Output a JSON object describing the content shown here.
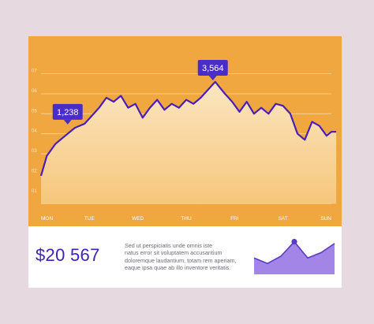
{
  "colors": {
    "background": "#e7d9e0",
    "panel": "#f1a73f",
    "line": "#4a1fb8",
    "callout": "#4a2dc8",
    "grid": "#fbd79a",
    "area_top": "#fbe6c2",
    "area_bottom": "#f6c77c",
    "mini_fill": "#a385e8",
    "mini_line": "#5a3cc4"
  },
  "chart_data": {
    "type": "area",
    "title": "",
    "xlabel": "",
    "ylabel": "",
    "categories": [
      "MON",
      "TUE",
      "WED",
      "THU",
      "FRI",
      "SAT",
      "SUN"
    ],
    "yticks": [
      "01",
      "02",
      "03",
      "04",
      "05",
      "06",
      "07"
    ],
    "ylim": [
      0.4,
      7.3
    ],
    "grid": true,
    "x": [
      0.0,
      0.12,
      0.3,
      0.5,
      0.7,
      0.9,
      1.05,
      1.2,
      1.35,
      1.5,
      1.65,
      1.8,
      1.95,
      2.1,
      2.25,
      2.4,
      2.55,
      2.7,
      2.85,
      3.0,
      3.15,
      3.3,
      3.45,
      3.6,
      3.7,
      3.8,
      3.95,
      4.1,
      4.25,
      4.4,
      4.55,
      4.7,
      4.85,
      5.0,
      5.15,
      5.3,
      5.45,
      5.6,
      5.75,
      5.9,
      6.0,
      6.1
    ],
    "values": [
      1.9,
      2.9,
      3.5,
      3.9,
      4.3,
      4.5,
      4.9,
      5.3,
      5.8,
      5.6,
      5.9,
      5.3,
      5.5,
      4.8,
      5.3,
      5.7,
      5.2,
      5.5,
      5.3,
      5.7,
      5.5,
      5.8,
      6.2,
      6.6,
      6.3,
      6.0,
      5.6,
      5.1,
      5.6,
      5.0,
      5.3,
      5.0,
      5.5,
      5.4,
      5.0,
      4.0,
      3.7,
      4.6,
      4.4,
      3.9,
      4.1,
      4.1
    ],
    "annotations": [
      {
        "x": 0.55,
        "y": 4.35,
        "label": "1,238"
      },
      {
        "x": 3.55,
        "y": 6.55,
        "label": "3,564"
      }
    ]
  },
  "summary": {
    "total": "$20 567",
    "description_lines": [
      "Sed ut perspiciatis unde omnis iste",
      "natus error sit voluptatem accusantium",
      "doloremque laudantium, totam rem aperiam,",
      "eaque ipsa quae ab illo inventore veritatis."
    ]
  },
  "mini_chart": {
    "type": "area",
    "x": [
      0,
      1,
      2,
      3,
      4,
      5,
      6
    ],
    "values": [
      0.45,
      0.3,
      0.5,
      0.9,
      0.45,
      0.6,
      0.85
    ],
    "marker_index": 3
  }
}
